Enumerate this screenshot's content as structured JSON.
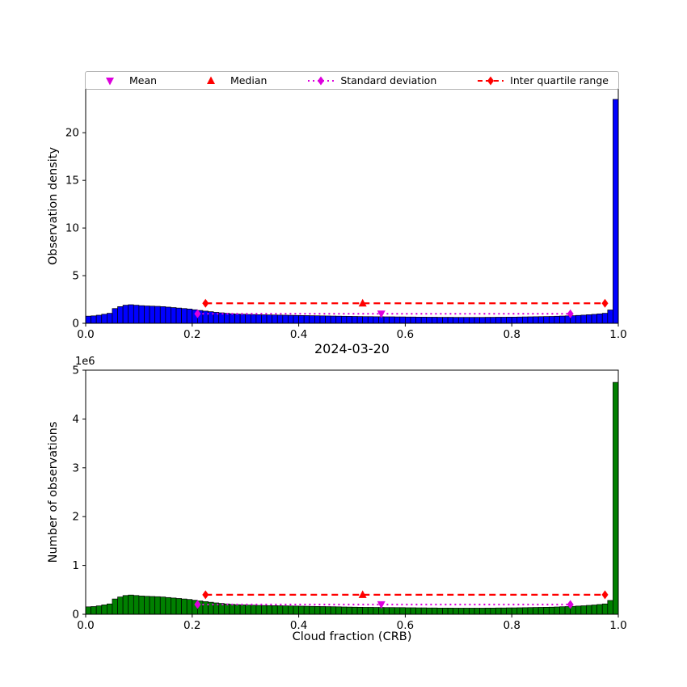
{
  "figure": {
    "title": "2024-03-20",
    "xlabel": "Cloud fraction (CRB)",
    "top_ylabel": "Observation density",
    "bottom_ylabel": "Number of observations",
    "offset_text": "1e6"
  },
  "colors": {
    "top_hist": "#0000ff",
    "bottom_hist": "#008000",
    "bar_edge": "#000000",
    "red": "#ff0000",
    "magenta": "#dd00dd",
    "axis": "#000000"
  },
  "legend": {
    "items": [
      {
        "label": "Mean",
        "marker": "triangle-down",
        "color": "#dd00dd",
        "line": "none"
      },
      {
        "label": "Median",
        "marker": "triangle-up",
        "color": "#ff0000",
        "line": "none"
      },
      {
        "label": "Standard deviation",
        "marker": "diamond",
        "color": "#dd00dd",
        "line": "dotted"
      },
      {
        "label": "Inter quartile range",
        "marker": "diamond",
        "color": "#ff0000",
        "line": "dashed"
      }
    ]
  },
  "chart_data": [
    {
      "type": "bar",
      "name": "observation-density-histogram",
      "ylabel": "Observation density",
      "bar_color": "#0000ff",
      "bin_start": 0,
      "bin_width": 0.01,
      "xlim": [
        0.0,
        1.0
      ],
      "ylim": [
        0,
        24.6
      ],
      "xticks": {
        "values": [
          0.0,
          0.2,
          0.4,
          0.6,
          0.8,
          1.0
        ],
        "labels": [
          "0.0",
          "0.2",
          "0.4",
          "0.6",
          "0.8",
          "1.0"
        ]
      },
      "yticks": {
        "values": [
          0,
          5,
          10,
          15,
          20
        ],
        "labels": [
          "0",
          "5",
          "10",
          "15",
          "20"
        ]
      },
      "values": [
        0.75,
        0.78,
        0.85,
        0.95,
        1.05,
        1.55,
        1.75,
        1.9,
        1.95,
        1.9,
        1.85,
        1.82,
        1.8,
        1.78,
        1.75,
        1.7,
        1.65,
        1.6,
        1.55,
        1.5,
        1.42,
        1.35,
        1.28,
        1.22,
        1.15,
        1.1,
        1.05,
        1.0,
        0.97,
        0.95,
        0.93,
        0.92,
        0.9,
        0.89,
        0.88,
        0.87,
        0.86,
        0.85,
        0.84,
        0.83,
        0.82,
        0.81,
        0.8,
        0.79,
        0.78,
        0.77,
        0.76,
        0.75,
        0.74,
        0.73,
        0.72,
        0.71,
        0.7,
        0.7,
        0.69,
        0.69,
        0.68,
        0.68,
        0.67,
        0.67,
        0.66,
        0.66,
        0.65,
        0.65,
        0.64,
        0.64,
        0.63,
        0.63,
        0.63,
        0.62,
        0.62,
        0.62,
        0.62,
        0.62,
        0.62,
        0.63,
        0.63,
        0.64,
        0.64,
        0.65,
        0.65,
        0.66,
        0.67,
        0.68,
        0.69,
        0.7,
        0.71,
        0.72,
        0.74,
        0.76,
        0.78,
        0.8,
        0.83,
        0.86,
        0.9,
        0.94,
        0.99,
        1.05,
        1.4,
        23.5
      ],
      "stats": {
        "mean": 0.555,
        "median": 0.52,
        "std_low": 0.21,
        "std_high": 0.91,
        "q1": 0.225,
        "q3": 0.975,
        "mean_y": 1.0,
        "median_y": 2.1,
        "std_y": 1.0,
        "iqr_y": 2.1
      }
    },
    {
      "type": "bar",
      "name": "observation-count-histogram",
      "title": "2024-03-20",
      "ylabel": "Number of observations",
      "xlabel": "Cloud fraction (CRB)",
      "bar_color": "#008000",
      "bin_start": 0,
      "bin_width": 0.01,
      "xlim": [
        0.0,
        1.0
      ],
      "ylim": [
        0,
        5000000
      ],
      "xticks": {
        "values": [
          0.0,
          0.2,
          0.4,
          0.6,
          0.8,
          1.0
        ],
        "labels": [
          "0.0",
          "0.2",
          "0.4",
          "0.6",
          "0.8",
          "1.0"
        ]
      },
      "yticks": {
        "values": [
          0,
          1000000,
          2000000,
          3000000,
          4000000,
          5000000
        ],
        "labels": [
          "0",
          "1",
          "2",
          "3",
          "4",
          "5"
        ]
      },
      "y_offset": "1e6",
      "values": [
        152000,
        158000,
        172000,
        192000,
        212000,
        313000,
        354000,
        384000,
        394000,
        384000,
        374000,
        368000,
        364000,
        360000,
        354000,
        343000,
        333000,
        323000,
        313000,
        303000,
        287000,
        273000,
        259000,
        246000,
        232000,
        222000,
        212000,
        202000,
        196000,
        192000,
        188000,
        186000,
        182000,
        180000,
        178000,
        176000,
        174000,
        172000,
        170000,
        168000,
        166000,
        164000,
        162000,
        160000,
        158000,
        156000,
        154000,
        152000,
        149000,
        147000,
        145000,
        143000,
        141000,
        141000,
        139000,
        139000,
        137000,
        137000,
        136000,
        136000,
        133000,
        133000,
        131000,
        131000,
        129000,
        129000,
        127000,
        127000,
        127000,
        125000,
        125000,
        125000,
        125000,
        125000,
        125000,
        127000,
        127000,
        129000,
        129000,
        131000,
        131000,
        133000,
        135000,
        137000,
        139000,
        141000,
        143000,
        145000,
        149000,
        154000,
        158000,
        162000,
        168000,
        174000,
        182000,
        190000,
        200000,
        212000,
        283000,
        4750000
      ],
      "stats": {
        "mean": 0.555,
        "median": 0.52,
        "std_low": 0.21,
        "std_high": 0.91,
        "q1": 0.225,
        "q3": 0.975,
        "mean_y": 200000,
        "median_y": 400000,
        "std_y": 200000,
        "iqr_y": 400000
      }
    }
  ]
}
